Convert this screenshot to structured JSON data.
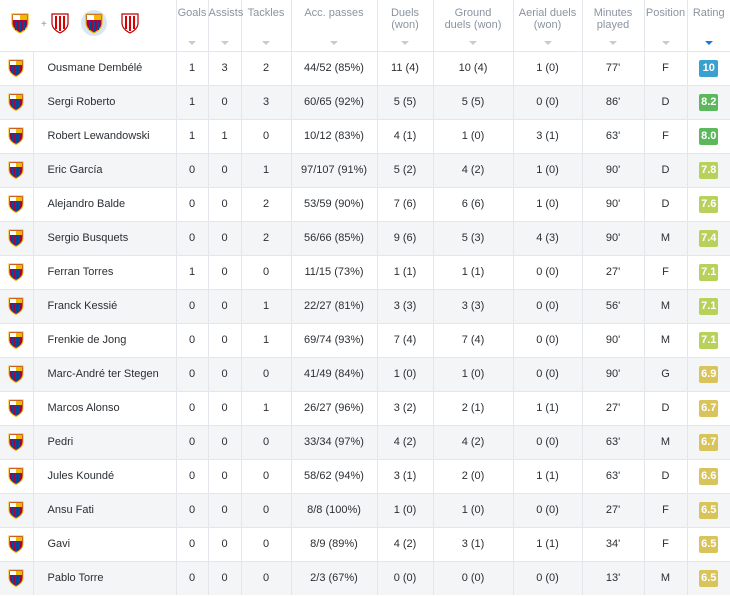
{
  "header": {
    "columns": [
      {
        "key": "goals",
        "label": "Goals"
      },
      {
        "key": "assists",
        "label": "Assists"
      },
      {
        "key": "tackles",
        "label": "Tackles"
      },
      {
        "key": "acc_passes",
        "label": "Acc. passes"
      },
      {
        "key": "duels",
        "label": "Duels (won)"
      },
      {
        "key": "ground_duels",
        "label": "Ground duels (won)"
      },
      {
        "key": "aerial_duels",
        "label": "Aerial duels (won)"
      },
      {
        "key": "minutes",
        "label": "Minutes played"
      },
      {
        "key": "position",
        "label": "Position"
      },
      {
        "key": "rating",
        "label": "Rating"
      }
    ],
    "team_filter": {
      "barcelona_icon": "fc-barcelona-crest-icon",
      "bilbao_icon": "athletic-bilbao-crest-icon",
      "plus": "+"
    },
    "sorted_column": "rating"
  },
  "colors": {
    "sort_active": "#1a79d8",
    "rating_10": "#3aa0d0",
    "rating_high": "#5cb85c",
    "rating_mid": "#b7d15a",
    "rating_low": "#d9c45c"
  },
  "players": [
    {
      "name": "Ousmane Dembélé",
      "goals": "1",
      "assists": "3",
      "tackles": "2",
      "acc_passes": "44/52 (85%)",
      "duels": "11 (4)",
      "ground_duels": "10 (4)",
      "aerial_duels": "1 (0)",
      "minutes": "77'",
      "position": "F",
      "rating": "10",
      "rating_color": "#3aa0d0"
    },
    {
      "name": "Sergi Roberto",
      "goals": "1",
      "assists": "0",
      "tackles": "3",
      "acc_passes": "60/65 (92%)",
      "duels": "5 (5)",
      "ground_duels": "5 (5)",
      "aerial_duels": "0 (0)",
      "minutes": "86'",
      "position": "D",
      "rating": "8.2",
      "rating_color": "#5cb85c"
    },
    {
      "name": "Robert Lewandowski",
      "goals": "1",
      "assists": "1",
      "tackles": "0",
      "acc_passes": "10/12 (83%)",
      "duels": "4 (1)",
      "ground_duels": "1 (0)",
      "aerial_duels": "3 (1)",
      "minutes": "63'",
      "position": "F",
      "rating": "8.0",
      "rating_color": "#5cb85c"
    },
    {
      "name": "Eric García",
      "goals": "0",
      "assists": "0",
      "tackles": "1",
      "acc_passes": "97/107 (91%)",
      "duels": "5 (2)",
      "ground_duels": "4 (2)",
      "aerial_duels": "1 (0)",
      "minutes": "90'",
      "position": "D",
      "rating": "7.8",
      "rating_color": "#b7d15a"
    },
    {
      "name": "Alejandro Balde",
      "goals": "0",
      "assists": "0",
      "tackles": "2",
      "acc_passes": "53/59 (90%)",
      "duels": "7 (6)",
      "ground_duels": "6 (6)",
      "aerial_duels": "1 (0)",
      "minutes": "90'",
      "position": "D",
      "rating": "7.6",
      "rating_color": "#b7d15a"
    },
    {
      "name": "Sergio Busquets",
      "goals": "0",
      "assists": "0",
      "tackles": "2",
      "acc_passes": "56/66 (85%)",
      "duels": "9 (6)",
      "ground_duels": "5 (3)",
      "aerial_duels": "4 (3)",
      "minutes": "90'",
      "position": "M",
      "rating": "7.4",
      "rating_color": "#b7d15a"
    },
    {
      "name": "Ferran Torres",
      "goals": "1",
      "assists": "0",
      "tackles": "0",
      "acc_passes": "11/15 (73%)",
      "duels": "1 (1)",
      "ground_duels": "1 (1)",
      "aerial_duels": "0 (0)",
      "minutes": "27'",
      "position": "F",
      "rating": "7.1",
      "rating_color": "#b7d15a"
    },
    {
      "name": "Franck Kessié",
      "goals": "0",
      "assists": "0",
      "tackles": "1",
      "acc_passes": "22/27 (81%)",
      "duels": "3 (3)",
      "ground_duels": "3 (3)",
      "aerial_duels": "0 (0)",
      "minutes": "56'",
      "position": "M",
      "rating": "7.1",
      "rating_color": "#b7d15a"
    },
    {
      "name": "Frenkie de Jong",
      "goals": "0",
      "assists": "0",
      "tackles": "1",
      "acc_passes": "69/74 (93%)",
      "duels": "7 (4)",
      "ground_duels": "7 (4)",
      "aerial_duels": "0 (0)",
      "minutes": "90'",
      "position": "M",
      "rating": "7.1",
      "rating_color": "#b7d15a"
    },
    {
      "name": "Marc-André ter Stegen",
      "goals": "0",
      "assists": "0",
      "tackles": "0",
      "acc_passes": "41/49 (84%)",
      "duels": "1 (0)",
      "ground_duels": "1 (0)",
      "aerial_duels": "0 (0)",
      "minutes": "90'",
      "position": "G",
      "rating": "6.9",
      "rating_color": "#d9c45c"
    },
    {
      "name": "Marcos Alonso",
      "goals": "0",
      "assists": "0",
      "tackles": "1",
      "acc_passes": "26/27 (96%)",
      "duels": "3 (2)",
      "ground_duels": "2 (1)",
      "aerial_duels": "1 (1)",
      "minutes": "27'",
      "position": "D",
      "rating": "6.7",
      "rating_color": "#d9c45c"
    },
    {
      "name": "Pedri",
      "goals": "0",
      "assists": "0",
      "tackles": "0",
      "acc_passes": "33/34 (97%)",
      "duels": "4 (2)",
      "ground_duels": "4 (2)",
      "aerial_duels": "0 (0)",
      "minutes": "63'",
      "position": "M",
      "rating": "6.7",
      "rating_color": "#d9c45c"
    },
    {
      "name": "Jules Koundé",
      "goals": "0",
      "assists": "0",
      "tackles": "0",
      "acc_passes": "58/62 (94%)",
      "duels": "3 (1)",
      "ground_duels": "2 (0)",
      "aerial_duels": "1 (1)",
      "minutes": "63'",
      "position": "D",
      "rating": "6.6",
      "rating_color": "#d9c45c"
    },
    {
      "name": "Ansu Fati",
      "goals": "0",
      "assists": "0",
      "tackles": "0",
      "acc_passes": "8/8 (100%)",
      "duels": "1 (0)",
      "ground_duels": "1 (0)",
      "aerial_duels": "0 (0)",
      "minutes": "27'",
      "position": "F",
      "rating": "6.5",
      "rating_color": "#d9c45c"
    },
    {
      "name": "Gavi",
      "goals": "0",
      "assists": "0",
      "tackles": "0",
      "acc_passes": "8/9 (89%)",
      "duels": "4 (2)",
      "ground_duels": "3 (1)",
      "aerial_duels": "1 (1)",
      "minutes": "34'",
      "position": "F",
      "rating": "6.5",
      "rating_color": "#d9c45c"
    },
    {
      "name": "Pablo Torre",
      "goals": "0",
      "assists": "0",
      "tackles": "0",
      "acc_passes": "2/3 (67%)",
      "duels": "0 (0)",
      "ground_duels": "0 (0)",
      "aerial_duels": "0 (0)",
      "minutes": "13'",
      "position": "M",
      "rating": "6.5",
      "rating_color": "#d9c45c"
    }
  ]
}
